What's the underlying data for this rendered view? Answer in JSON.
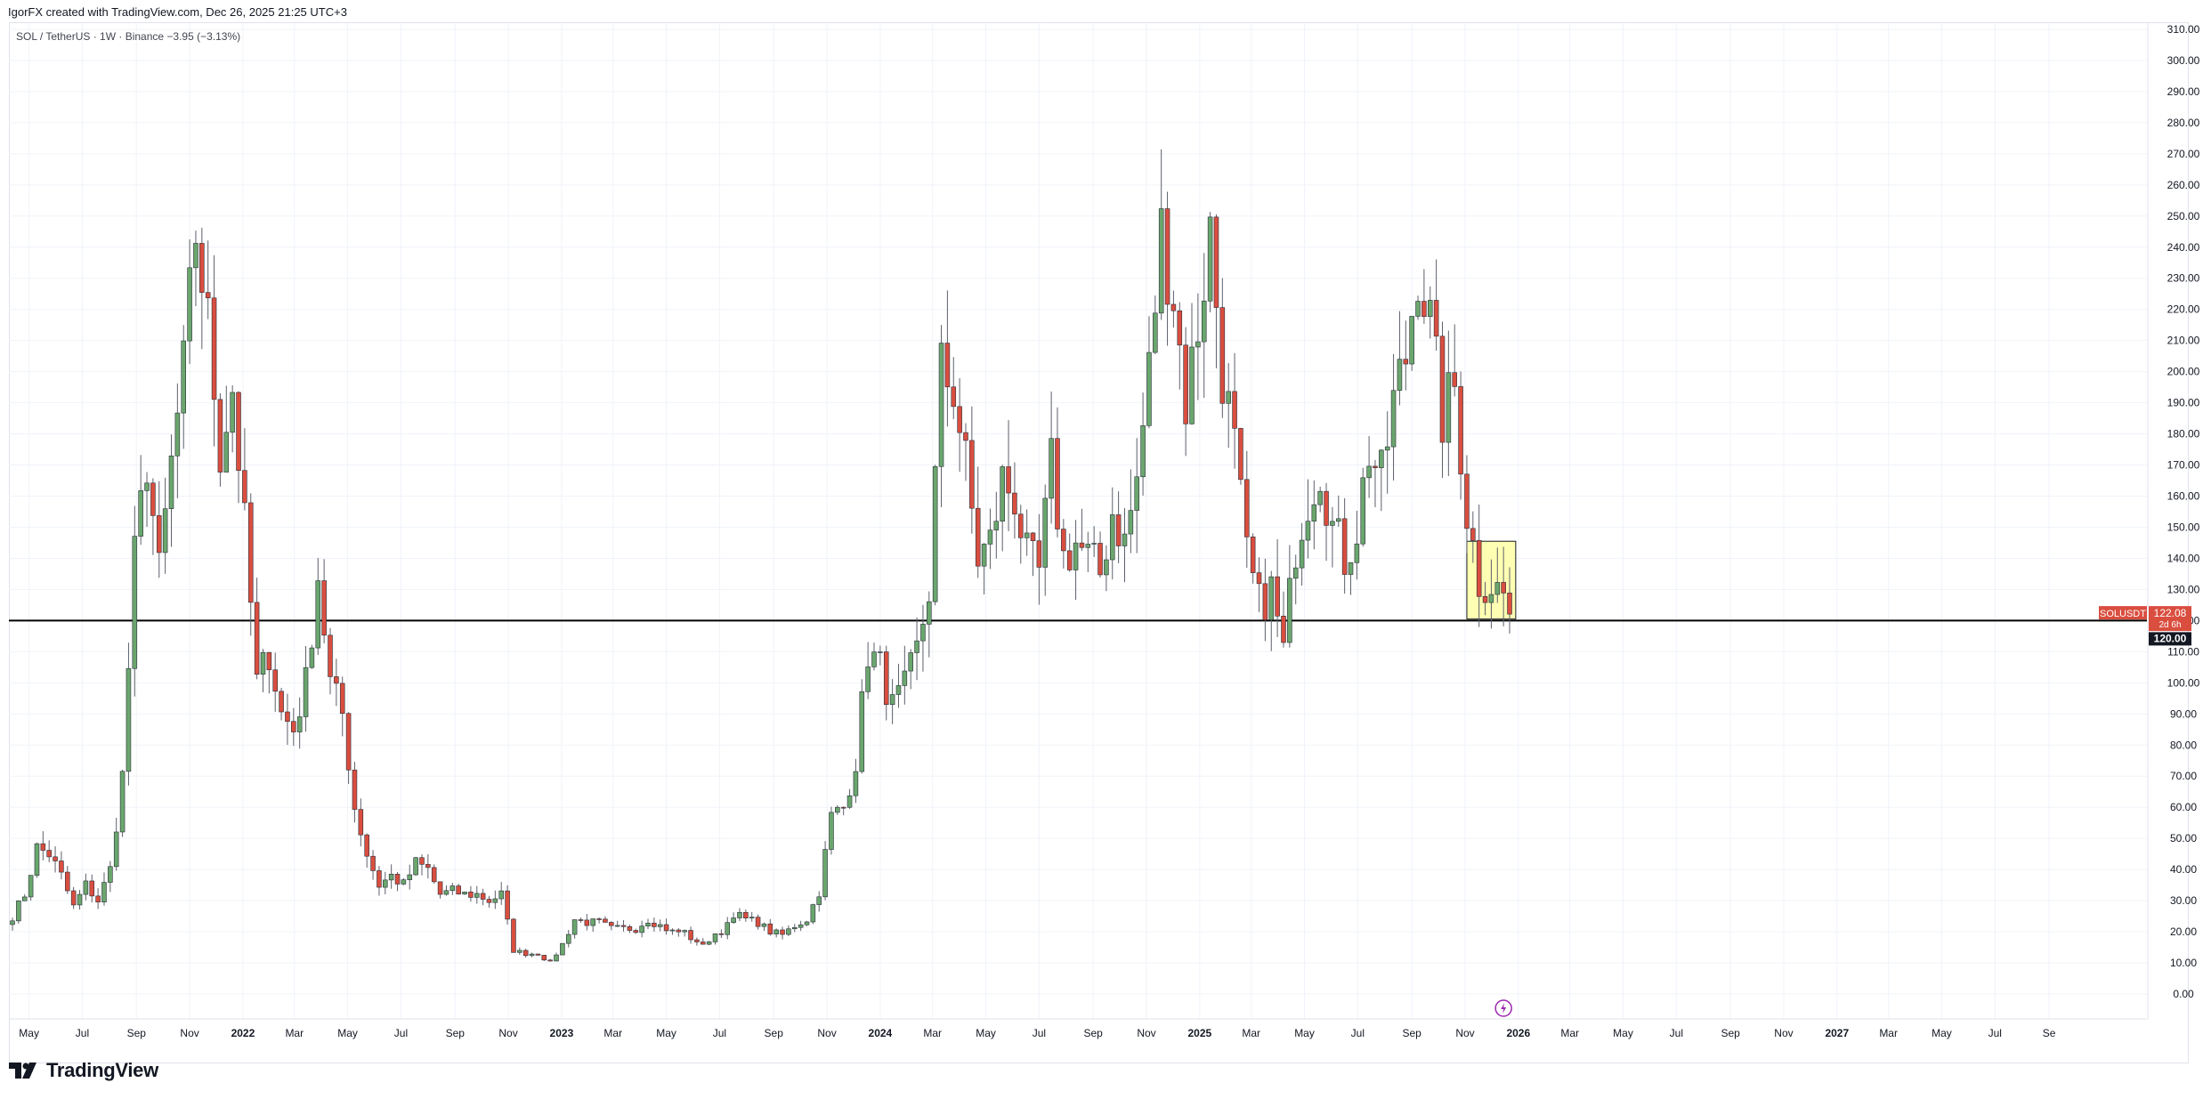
{
  "header": {
    "text": "IgorFX created with TradingView.com, Dec 26, 2025 21:25 UTC+3"
  },
  "symbol": {
    "text": "SOL / TetherUS · 1W · Binance  −3.95 (−3.13%)"
  },
  "branding": {
    "logo_text": "TradingView",
    "logo_icon": "tradingview-logo-icon"
  },
  "colors": {
    "up": "#6aa66d",
    "down": "#d94e3f",
    "grid": "#f0f3fa",
    "level": "#000000",
    "box_fill": "#ffff99",
    "box_stroke": "#131722"
  },
  "chart_data": {
    "type": "candlestick",
    "title": "",
    "timeframe": "1W",
    "price_axis": {
      "min": 0,
      "max": 310,
      "ticks": [
        "0.00",
        "10.00",
        "20.00",
        "30.00",
        "40.00",
        "50.00",
        "60.00",
        "70.00",
        "80.00",
        "90.00",
        "100.00",
        "110.00",
        "120.00",
        "130.00",
        "140.00",
        "150.00",
        "160.00",
        "170.00",
        "180.00",
        "190.00",
        "200.00",
        "210.00",
        "220.00",
        "230.00",
        "240.00",
        "250.00",
        "260.00",
        "270.00",
        "280.00",
        "290.00",
        "300.00",
        "310.00"
      ]
    },
    "time_axis": {
      "start": "2021-04-12",
      "end": "2027-12-20",
      "labels": [
        {
          "text": "May",
          "date": "2021-05-01"
        },
        {
          "text": "Jul",
          "date": "2021-07-01"
        },
        {
          "text": "Sep",
          "date": "2021-09-01"
        },
        {
          "text": "Nov",
          "date": "2021-11-01"
        },
        {
          "text": "2022",
          "date": "2022-01-01",
          "bold": true
        },
        {
          "text": "Mar",
          "date": "2022-03-01"
        },
        {
          "text": "May",
          "date": "2022-05-01"
        },
        {
          "text": "Jul",
          "date": "2022-07-01"
        },
        {
          "text": "Sep",
          "date": "2022-09-01"
        },
        {
          "text": "Nov",
          "date": "2022-11-01"
        },
        {
          "text": "2023",
          "date": "2023-01-01",
          "bold": true
        },
        {
          "text": "Mar",
          "date": "2023-03-01"
        },
        {
          "text": "May",
          "date": "2023-05-01"
        },
        {
          "text": "Jul",
          "date": "2023-07-01"
        },
        {
          "text": "Sep",
          "date": "2023-09-01"
        },
        {
          "text": "Nov",
          "date": "2023-11-01"
        },
        {
          "text": "2024",
          "date": "2024-01-01",
          "bold": true
        },
        {
          "text": "Mar",
          "date": "2024-03-01"
        },
        {
          "text": "May",
          "date": "2024-05-01"
        },
        {
          "text": "Jul",
          "date": "2024-07-01"
        },
        {
          "text": "Sep",
          "date": "2024-09-01"
        },
        {
          "text": "Nov",
          "date": "2024-11-01"
        },
        {
          "text": "2025",
          "date": "2025-01-01",
          "bold": true
        },
        {
          "text": "Mar",
          "date": "2025-03-01"
        },
        {
          "text": "May",
          "date": "2025-05-01"
        },
        {
          "text": "Jul",
          "date": "2025-07-01"
        },
        {
          "text": "Sep",
          "date": "2025-09-01"
        },
        {
          "text": "Nov",
          "date": "2025-11-01"
        },
        {
          "text": "2026",
          "date": "2026-01-01",
          "bold": true
        },
        {
          "text": "Mar",
          "date": "2026-03-01"
        },
        {
          "text": "May",
          "date": "2026-05-01"
        },
        {
          "text": "Jul",
          "date": "2026-07-01"
        },
        {
          "text": "Sep",
          "date": "2026-09-01"
        },
        {
          "text": "Nov",
          "date": "2026-11-01"
        },
        {
          "text": "2027",
          "date": "2027-01-01",
          "bold": true
        },
        {
          "text": "Mar",
          "date": "2027-03-01"
        },
        {
          "text": "May",
          "date": "2027-05-01"
        },
        {
          "text": "Jul",
          "date": "2027-07-01"
        },
        {
          "text": "Se",
          "date": "2027-09-01"
        }
      ]
    },
    "horizontal_level": {
      "price": 120.0,
      "label": "120.00"
    },
    "last_price": {
      "symbol": "SOLUSDT",
      "price": "122.08",
      "countdown": "2d 6h",
      "value": 122.08
    },
    "highlight_box": {
      "from": "2025-11-03",
      "to": "2025-12-29",
      "low": 120.5,
      "high": 145.5
    },
    "event_marker": {
      "date": "2025-12-15",
      "icon": "lightning-icon"
    },
    "series_anchors": [
      [
        "2021-04-12",
        25
      ],
      [
        "2021-04-26",
        32
      ],
      [
        "2021-05-10",
        47
      ],
      [
        "2021-05-24",
        45
      ],
      [
        "2021-06-07",
        38
      ],
      [
        "2021-06-21",
        28
      ],
      [
        "2021-07-05",
        35
      ],
      [
        "2021-07-19",
        30
      ],
      [
        "2021-08-02",
        40
      ],
      [
        "2021-08-16",
        70
      ],
      [
        "2021-08-30",
        140
      ],
      [
        "2021-09-13",
        172
      ],
      [
        "2021-09-27",
        135
      ],
      [
        "2021-10-11",
        170
      ],
      [
        "2021-10-25",
        200
      ],
      [
        "2021-11-08",
        245
      ],
      [
        "2021-11-22",
        215
      ],
      [
        "2021-12-06",
        175
      ],
      [
        "2021-12-20",
        195
      ],
      [
        "2022-01-03",
        150
      ],
      [
        "2022-01-17",
        100
      ],
      [
        "2022-01-31",
        110
      ],
      [
        "2022-02-14",
        90
      ],
      [
        "2022-02-28",
        85
      ],
      [
        "2022-03-14",
        100
      ],
      [
        "2022-03-28",
        135
      ],
      [
        "2022-04-11",
        100
      ],
      [
        "2022-04-25",
        90
      ],
      [
        "2022-05-09",
        60
      ],
      [
        "2022-05-23",
        45
      ],
      [
        "2022-06-06",
        35
      ],
      [
        "2022-06-20",
        38
      ],
      [
        "2022-07-04",
        35
      ],
      [
        "2022-07-18",
        42
      ],
      [
        "2022-08-01",
        40
      ],
      [
        "2022-08-15",
        32
      ],
      [
        "2022-08-29",
        33
      ],
      [
        "2022-09-12",
        32
      ],
      [
        "2022-09-26",
        32
      ],
      [
        "2022-10-10",
        30
      ],
      [
        "2022-10-24",
        32
      ],
      [
        "2022-11-07",
        14
      ],
      [
        "2022-11-21",
        13
      ],
      [
        "2022-12-05",
        13
      ],
      [
        "2022-12-19",
        10
      ],
      [
        "2023-01-02",
        16
      ],
      [
        "2023-01-16",
        24
      ],
      [
        "2023-01-30",
        23
      ],
      [
        "2023-02-13",
        23
      ],
      [
        "2023-02-27",
        21
      ],
      [
        "2023-03-13",
        21
      ],
      [
        "2023-03-27",
        21
      ],
      [
        "2023-04-10",
        24
      ],
      [
        "2023-04-24",
        22
      ],
      [
        "2023-05-08",
        20
      ],
      [
        "2023-05-22",
        20
      ],
      [
        "2023-06-05",
        16
      ],
      [
        "2023-06-19",
        17
      ],
      [
        "2023-07-03",
        20
      ],
      [
        "2023-07-17",
        26
      ],
      [
        "2023-07-31",
        24
      ],
      [
        "2023-08-14",
        23
      ],
      [
        "2023-08-28",
        20
      ],
      [
        "2023-09-11",
        19
      ],
      [
        "2023-09-25",
        22
      ],
      [
        "2023-10-09",
        24
      ],
      [
        "2023-10-23",
        33
      ],
      [
        "2023-11-06",
        57
      ],
      [
        "2023-11-20",
        60
      ],
      [
        "2023-12-04",
        75
      ],
      [
        "2023-12-18",
        110
      ],
      [
        "2024-01-01",
        105
      ],
      [
        "2024-01-15",
        92
      ],
      [
        "2024-01-29",
        98
      ],
      [
        "2024-02-12",
        110
      ],
      [
        "2024-02-26",
        130
      ],
      [
        "2024-03-11",
        200
      ],
      [
        "2024-03-25",
        195
      ],
      [
        "2024-04-08",
        170
      ],
      [
        "2024-04-22",
        140
      ],
      [
        "2024-05-06",
        145
      ],
      [
        "2024-05-20",
        165
      ],
      [
        "2024-06-03",
        160
      ],
      [
        "2024-06-17",
        140
      ],
      [
        "2024-07-01",
        135
      ],
      [
        "2024-07-15",
        170
      ],
      [
        "2024-07-29",
        140
      ],
      [
        "2024-08-12",
        145
      ],
      [
        "2024-08-26",
        140
      ],
      [
        "2024-09-09",
        135
      ],
      [
        "2024-09-23",
        155
      ],
      [
        "2024-10-07",
        145
      ],
      [
        "2024-10-21",
        165
      ],
      [
        "2024-11-04",
        200
      ],
      [
        "2024-11-18",
        245
      ],
      [
        "2024-12-02",
        225
      ],
      [
        "2024-12-16",
        190
      ],
      [
        "2024-12-30",
        215
      ],
      [
        "2025-01-13",
        245
      ],
      [
        "2025-01-27",
        200
      ],
      [
        "2025-02-10",
        175
      ],
      [
        "2025-02-24",
        140
      ],
      [
        "2025-03-10",
        125
      ],
      [
        "2025-03-24",
        130
      ],
      [
        "2025-04-07",
        110
      ],
      [
        "2025-04-21",
        145
      ],
      [
        "2025-05-05",
        160
      ],
      [
        "2025-05-19",
        170
      ],
      [
        "2025-06-02",
        150
      ],
      [
        "2025-06-16",
        140
      ],
      [
        "2025-06-30",
        150
      ],
      [
        "2025-07-14",
        175
      ],
      [
        "2025-07-28",
        165
      ],
      [
        "2025-08-11",
        190
      ],
      [
        "2025-08-25",
        205
      ],
      [
        "2025-09-08",
        235
      ],
      [
        "2025-09-22",
        215
      ],
      [
        "2025-10-06",
        185
      ],
      [
        "2025-10-20",
        195
      ],
      [
        "2025-11-03",
        155
      ],
      [
        "2025-11-17",
        133
      ],
      [
        "2025-12-01",
        132
      ],
      [
        "2025-12-15",
        128
      ],
      [
        "2025-12-22",
        122.08
      ]
    ]
  }
}
